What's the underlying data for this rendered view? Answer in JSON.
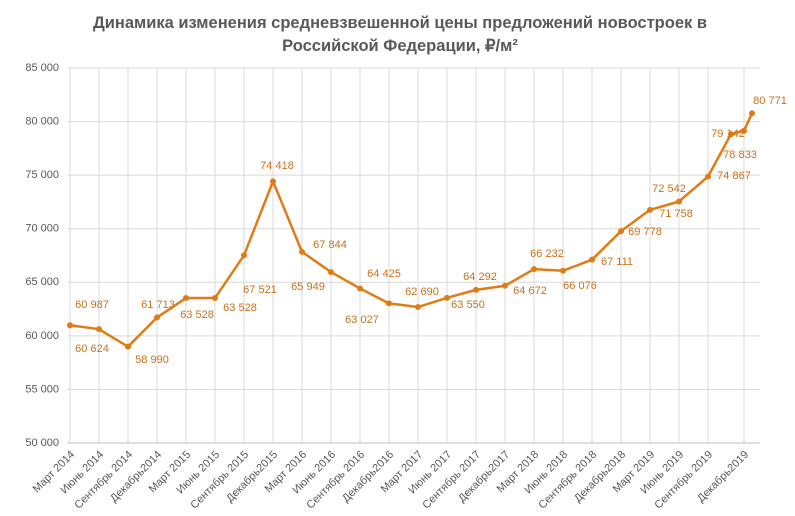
{
  "chart_data": {
    "type": "line",
    "title": "Динамика изменения средневзвешенной цены предложений новостроек в Российской Федерации, ₽/м²",
    "categories": [
      "Март 2014",
      "Июнь 2014",
      "Сентябрь 2014",
      "Декабрь2014",
      "Март 2015",
      "Июнь 2015",
      "Сентябрь 2015",
      "Декабрь2015",
      "Март 2016",
      "Июнь 2016",
      "Сентябрь 2016",
      "Декабрь2016",
      "Март 2017",
      "Июнь 2017",
      "Сентябрь 2017",
      "Декабрь2017",
      "Март 2018",
      "Июнь 2018",
      "Сентябрь 2018",
      "Декабрь2018",
      "Март 2019",
      "Июнь 2019",
      "Сентябрь 2019",
      null,
      "Декабрь2019",
      null
    ],
    "series": [
      {
        "color": "#e07b16",
        "values": [
          60987,
          60624,
          58990,
          61713,
          63528,
          63528,
          67521,
          74418,
          67844,
          65949,
          64425,
          63027,
          62690,
          63550,
          64292,
          64672,
          66232,
          66076,
          67111,
          69778,
          71758,
          72542,
          74867,
          78833,
          79142,
          80771
        ],
        "value_labels": [
          "60 987",
          "60 624",
          "58 990",
          "61 713",
          "63 528",
          "63 528",
          "67 521",
          "74 418",
          "67 844",
          "65 949",
          "64 425",
          "63 027",
          "62 690",
          "63 550",
          "64 292",
          "64 672",
          "66 232",
          "66 076",
          "67 111",
          "69 778",
          "71 758",
          "72 542",
          "74 867",
          "78 833",
          "79 142",
          "80 771"
        ]
      }
    ],
    "ylim": [
      50000,
      85000
    ],
    "yticks": [
      {
        "value": 50000,
        "label": "50 000"
      },
      {
        "value": 55000,
        "label": "55 000"
      },
      {
        "value": 60000,
        "label": "60 000"
      },
      {
        "value": 65000,
        "label": "65 000"
      },
      {
        "value": 70000,
        "label": "70 000"
      },
      {
        "value": 75000,
        "label": "75 000"
      },
      {
        "value": 80000,
        "label": "80 000"
      },
      {
        "value": 85000,
        "label": "85 000"
      }
    ],
    "grid": true
  }
}
